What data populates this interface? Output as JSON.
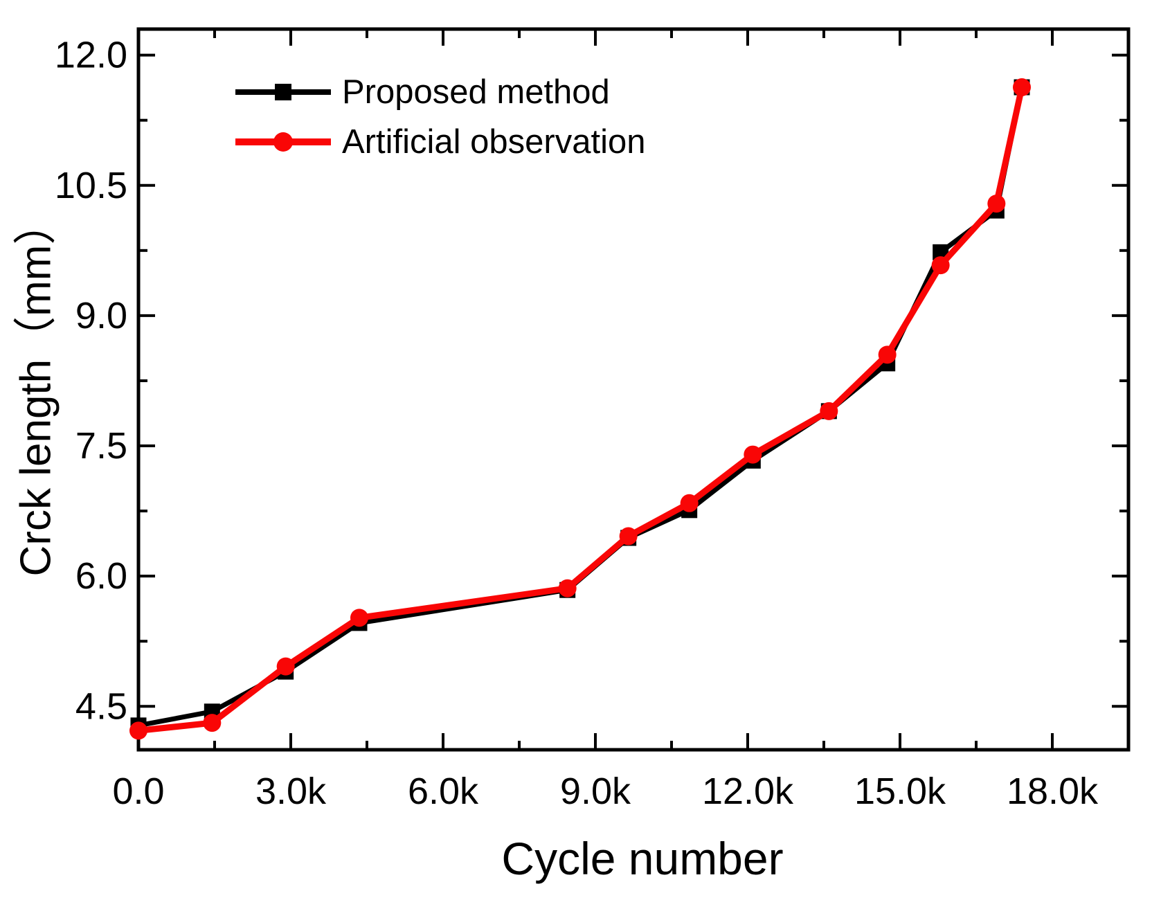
{
  "figure": {
    "background": "#ffffff",
    "frame_color": "#000000"
  },
  "chart_data": {
    "type": "line",
    "title": "",
    "xlabel": "Cycle number",
    "ylabel": "Crck length（mm）",
    "xlim": [
      0,
      19500
    ],
    "ylim": [
      4.0,
      12.3
    ],
    "grid": false,
    "legend_position": "top-left",
    "x_major_ticks": [
      0,
      3000,
      6000,
      9000,
      12000,
      15000,
      18000
    ],
    "x_major_labels": [
      "0.0",
      "3.0k",
      "6.0k",
      "9.0k",
      "12.0k",
      "15.0k",
      "18.0k"
    ],
    "x_minor_ticks": [
      1500,
      4500,
      7500,
      10500,
      13500,
      16500,
      19500
    ],
    "y_major_ticks": [
      4.5,
      6.0,
      7.5,
      9.0,
      10.5,
      12.0
    ],
    "y_major_labels": [
      "4.5",
      "6.0",
      "7.5",
      "9.0",
      "10.5",
      "12.0"
    ],
    "y_minor_ticks": [
      5.25,
      6.75,
      8.25,
      9.75,
      11.25
    ],
    "x": [
      0,
      1450,
      2900,
      4350,
      8450,
      9650,
      10850,
      12100,
      13600,
      14750,
      15800,
      16900,
      17400
    ],
    "series": [
      {
        "name": "Proposed method",
        "color": "#000000",
        "marker": "square",
        "values": [
          4.28,
          4.44,
          4.9,
          5.46,
          5.84,
          6.44,
          6.76,
          7.33,
          7.9,
          8.45,
          9.73,
          10.21,
          11.63
        ]
      },
      {
        "name": "Artificial observation",
        "color": "#f90606",
        "marker": "circle",
        "values": [
          4.22,
          4.31,
          4.96,
          5.52,
          5.86,
          6.46,
          6.84,
          7.4,
          7.9,
          8.55,
          9.58,
          10.29,
          11.63
        ]
      }
    ]
  }
}
